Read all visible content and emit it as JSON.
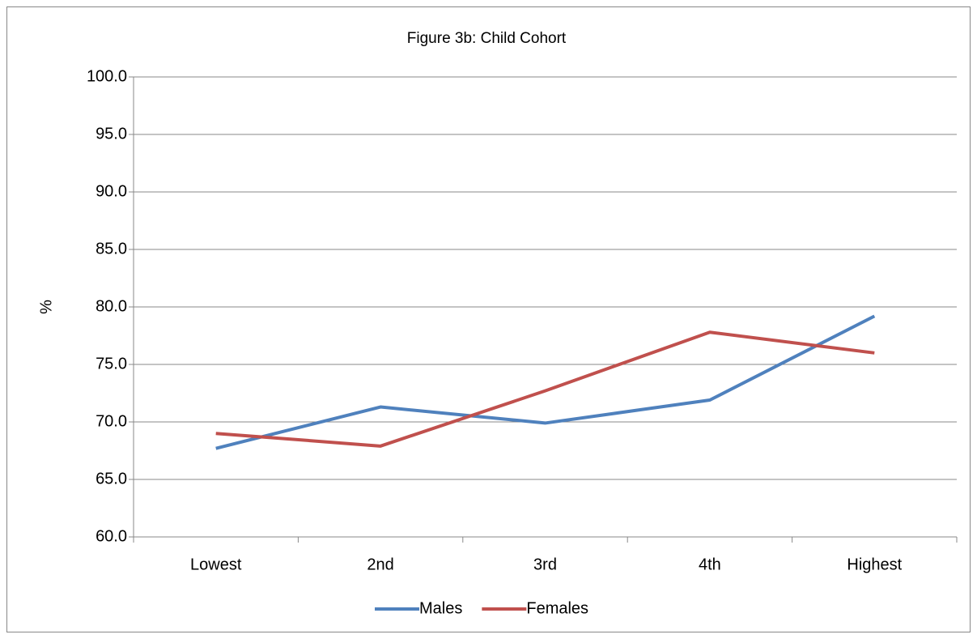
{
  "chart_data": {
    "type": "line",
    "title": "Figure 3b: Child Cohort",
    "y_label": "%",
    "categories": [
      "Lowest",
      "2nd",
      "3rd",
      "4th",
      "Highest"
    ],
    "series": [
      {
        "name": "Males",
        "color": "#4f81bd",
        "values": [
          67.7,
          71.3,
          69.9,
          71.9,
          79.2
        ]
      },
      {
        "name": "Females",
        "color": "#c0504d",
        "values": [
          69.0,
          67.9,
          72.7,
          77.8,
          76.0
        ]
      }
    ],
    "ylim": [
      60,
      100
    ],
    "yticks": [
      {
        "value": 60,
        "label": "60.0"
      },
      {
        "value": 65,
        "label": "65.0"
      },
      {
        "value": 70,
        "label": "70.0"
      },
      {
        "value": 75,
        "label": "75.0"
      },
      {
        "value": 80,
        "label": "80.0"
      },
      {
        "value": 85,
        "label": "85.0"
      },
      {
        "value": 90,
        "label": "90.0"
      },
      {
        "value": 95,
        "label": "95.0"
      },
      {
        "value": 100,
        "label": "100.0"
      }
    ],
    "grid": true,
    "legend": "bottom"
  }
}
